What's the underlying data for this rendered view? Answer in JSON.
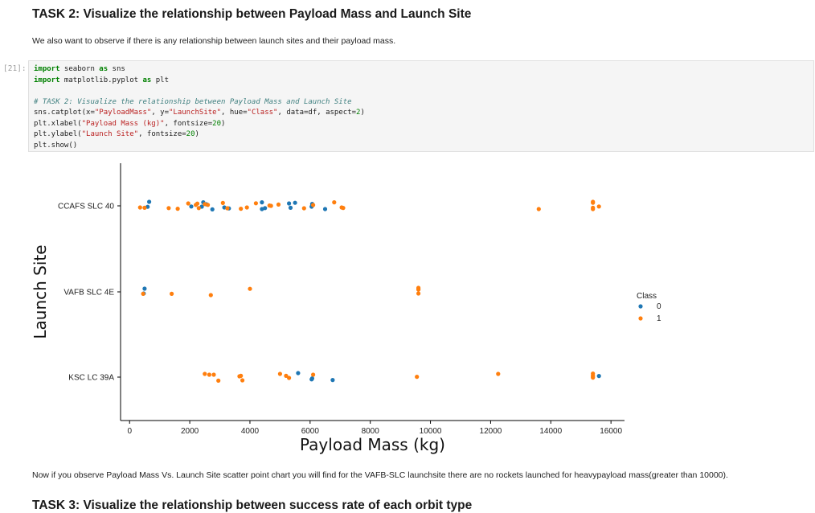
{
  "task_heading": "TASK 2: Visualize the relationship between Payload Mass and Launch Site",
  "description": "We also want to observe if there is any relationship between launch sites and their payload mass.",
  "cell": {
    "prompt": "[21]:",
    "lines": [
      "import seaborn as sns",
      "import matplotlib.pyplot as plt",
      "",
      "# TASK 2: Visualize the relationship between Payload Mass and Launch Site",
      "sns.catplot(x=\"PayloadMass\", y=\"LaunchSite\", hue=\"Class\", data=df, aspect=2)",
      "plt.xlabel(\"Payload Mass (kg)\", fontsize=20)",
      "plt.ylabel(\"Launch Site\", fontsize=20)",
      "plt.show()"
    ]
  },
  "observation": "Now if you observe Payload Mass Vs. Launch Site scatter point chart you will find for the VAFB-SLC launchsite there are no rockets launched for heavypayload mass(greater than 10000).",
  "next_heading": "TASK 3: Visualize the relationship between success rate of each orbit type",
  "chart_data": {
    "type": "scatter",
    "xlabel": "Payload Mass (kg)",
    "ylabel": "Launch Site",
    "xlim": [
      -300,
      16450
    ],
    "xticks": [
      0,
      2000,
      4000,
      6000,
      8000,
      10000,
      12000,
      14000,
      16000
    ],
    "categories": [
      "CCAFS SLC 40",
      "VAFB SLC 4E",
      "KSC LC 39A"
    ],
    "legend": {
      "title": "Class",
      "placement": "right"
    },
    "series": [
      {
        "name": "0",
        "color": "#1f77b4",
        "points": [
          {
            "x": 600,
            "site": "CCAFS SLC 40",
            "j": -0.06
          },
          {
            "x": 650,
            "site": "CCAFS SLC 40",
            "j": 0.25
          },
          {
            "x": 2050,
            "site": "CCAFS SLC 40",
            "j": -0.04
          },
          {
            "x": 2450,
            "site": "CCAFS SLC 40",
            "j": 0.22
          },
          {
            "x": 2550,
            "site": "CCAFS SLC 40",
            "j": 0.1
          },
          {
            "x": 2400,
            "site": "CCAFS SLC 40",
            "j": -0.05
          },
          {
            "x": 2750,
            "site": "CCAFS SLC 40",
            "j": -0.22
          },
          {
            "x": 3150,
            "site": "CCAFS SLC 40",
            "j": -0.1
          },
          {
            "x": 3300,
            "site": "CCAFS SLC 40",
            "j": -0.16
          },
          {
            "x": 4400,
            "site": "CCAFS SLC 40",
            "j": 0.22
          },
          {
            "x": 4400,
            "site": "CCAFS SLC 40",
            "j": -0.2
          },
          {
            "x": 4500,
            "site": "CCAFS SLC 40",
            "j": -0.14
          },
          {
            "x": 5300,
            "site": "CCAFS SLC 40",
            "j": 0.15
          },
          {
            "x": 5350,
            "site": "CCAFS SLC 40",
            "j": -0.12
          },
          {
            "x": 5500,
            "site": "CCAFS SLC 40",
            "j": 0.19
          },
          {
            "x": 6070,
            "site": "CCAFS SLC 40",
            "j": 0.12
          },
          {
            "x": 6050,
            "site": "CCAFS SLC 40",
            "j": -0.05
          },
          {
            "x": 6500,
            "site": "CCAFS SLC 40",
            "j": -0.2
          },
          {
            "x": 500,
            "site": "VAFB SLC 4E",
            "j": 0.2
          },
          {
            "x": 470,
            "site": "VAFB SLC 4E",
            "j": -0.1
          },
          {
            "x": 5600,
            "site": "KSC LC 39A",
            "j": 0.25
          },
          {
            "x": 6070,
            "site": "KSC LC 39A",
            "j": -0.08
          },
          {
            "x": 6050,
            "site": "KSC LC 39A",
            "j": -0.14
          },
          {
            "x": 6750,
            "site": "KSC LC 39A",
            "j": -0.18
          },
          {
            "x": 15600,
            "site": "KSC LC 39A",
            "j": 0.07
          }
        ]
      },
      {
        "name": "1",
        "color": "#ff7f0e",
        "points": [
          {
            "x": 350,
            "site": "CCAFS SLC 40",
            "j": -0.1
          },
          {
            "x": 500,
            "site": "CCAFS SLC 40",
            "j": -0.12
          },
          {
            "x": 1300,
            "site": "CCAFS SLC 40",
            "j": -0.14
          },
          {
            "x": 1600,
            "site": "CCAFS SLC 40",
            "j": -0.18
          },
          {
            "x": 1950,
            "site": "CCAFS SLC 40",
            "j": 0.15
          },
          {
            "x": 2200,
            "site": "CCAFS SLC 40",
            "j": 0.06
          },
          {
            "x": 2250,
            "site": "CCAFS SLC 40",
            "j": 0.14
          },
          {
            "x": 2300,
            "site": "CCAFS SLC 40",
            "j": -0.14
          },
          {
            "x": 2500,
            "site": "CCAFS SLC 40",
            "j": 0.11
          },
          {
            "x": 2600,
            "site": "CCAFS SLC 40",
            "j": 0.06
          },
          {
            "x": 3100,
            "site": "CCAFS SLC 40",
            "j": 0.18
          },
          {
            "x": 3250,
            "site": "CCAFS SLC 40",
            "j": -0.15
          },
          {
            "x": 3700,
            "site": "CCAFS SLC 40",
            "j": -0.18
          },
          {
            "x": 3900,
            "site": "CCAFS SLC 40",
            "j": -0.1
          },
          {
            "x": 4200,
            "site": "CCAFS SLC 40",
            "j": 0.16
          },
          {
            "x": 4650,
            "site": "CCAFS SLC 40",
            "j": 0.02
          },
          {
            "x": 4700,
            "site": "CCAFS SLC 40",
            "j": 0.0
          },
          {
            "x": 4950,
            "site": "CCAFS SLC 40",
            "j": 0.08
          },
          {
            "x": 5800,
            "site": "CCAFS SLC 40",
            "j": -0.15
          },
          {
            "x": 6100,
            "site": "CCAFS SLC 40",
            "j": 0.05
          },
          {
            "x": 6800,
            "site": "CCAFS SLC 40",
            "j": 0.22
          },
          {
            "x": 7050,
            "site": "CCAFS SLC 40",
            "j": -0.1
          },
          {
            "x": 7100,
            "site": "CCAFS SLC 40",
            "j": -0.13
          },
          {
            "x": 13600,
            "site": "CCAFS SLC 40",
            "j": -0.2
          },
          {
            "x": 15400,
            "site": "CCAFS SLC 40",
            "j": 0.25
          },
          {
            "x": 15400,
            "site": "CCAFS SLC 40",
            "j": 0.19
          },
          {
            "x": 15400,
            "site": "CCAFS SLC 40",
            "j": -0.12
          },
          {
            "x": 15400,
            "site": "CCAFS SLC 40",
            "j": -0.2
          },
          {
            "x": 15600,
            "site": "CCAFS SLC 40",
            "j": -0.04
          },
          {
            "x": 450,
            "site": "VAFB SLC 4E",
            "j": -0.12
          },
          {
            "x": 1400,
            "site": "VAFB SLC 4E",
            "j": -0.12
          },
          {
            "x": 2700,
            "site": "VAFB SLC 4E",
            "j": -0.2
          },
          {
            "x": 4000,
            "site": "VAFB SLC 4E",
            "j": 0.19
          },
          {
            "x": 9600,
            "site": "VAFB SLC 4E",
            "j": 0.25
          },
          {
            "x": 9600,
            "site": "VAFB SLC 4E",
            "j": 0.19
          },
          {
            "x": 9600,
            "site": "VAFB SLC 4E",
            "j": 0.14
          },
          {
            "x": 9600,
            "site": "VAFB SLC 4E",
            "j": -0.1
          },
          {
            "x": 2500,
            "site": "KSC LC 39A",
            "j": 0.2
          },
          {
            "x": 2650,
            "site": "KSC LC 39A",
            "j": 0.15
          },
          {
            "x": 2800,
            "site": "KSC LC 39A",
            "j": 0.15
          },
          {
            "x": 2950,
            "site": "KSC LC 39A",
            "j": -0.22
          },
          {
            "x": 3650,
            "site": "KSC LC 39A",
            "j": 0.05
          },
          {
            "x": 3700,
            "site": "KSC LC 39A",
            "j": 0.08
          },
          {
            "x": 3750,
            "site": "KSC LC 39A",
            "j": -0.2
          },
          {
            "x": 5000,
            "site": "KSC LC 39A",
            "j": 0.2
          },
          {
            "x": 5200,
            "site": "KSC LC 39A",
            "j": 0.08
          },
          {
            "x": 5300,
            "site": "KSC LC 39A",
            "j": -0.05
          },
          {
            "x": 6100,
            "site": "KSC LC 39A",
            "j": 0.15
          },
          {
            "x": 9550,
            "site": "KSC LC 39A",
            "j": 0.02
          },
          {
            "x": 12250,
            "site": "KSC LC 39A",
            "j": 0.2
          },
          {
            "x": 15400,
            "site": "KSC LC 39A",
            "j": 0.22
          },
          {
            "x": 15400,
            "site": "KSC LC 39A",
            "j": 0.1
          },
          {
            "x": 15400,
            "site": "KSC LC 39A",
            "j": 0.03
          },
          {
            "x": 15400,
            "site": "KSC LC 39A",
            "j": -0.03
          }
        ]
      }
    ]
  }
}
